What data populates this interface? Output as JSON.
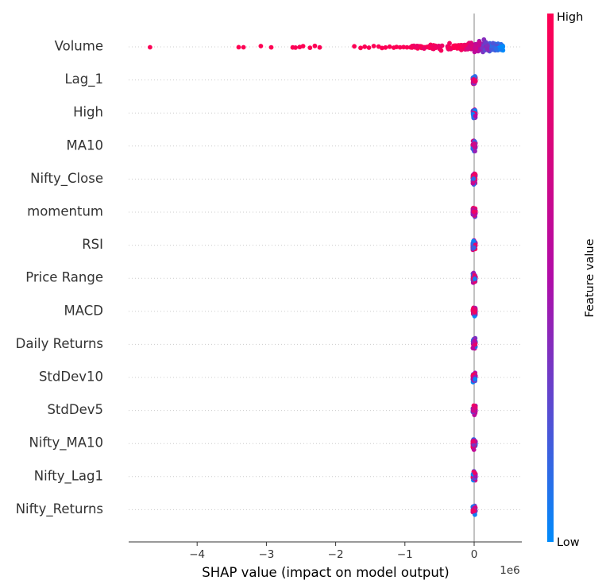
{
  "chart_data": {
    "type": "scatter",
    "subtype": "shap-beeswarm-summary",
    "features": [
      "Volume",
      "Lag_1",
      "High",
      "MA10",
      "Nifty_Close",
      "momentum",
      "RSI",
      "Price Range",
      "MACD",
      "Daily Returns",
      "StdDev10",
      "StdDev5",
      "Nifty_MA10",
      "Nifty_Lag1",
      "Nifty_Returns"
    ],
    "xlabel": "SHAP value (impact on model output)",
    "x_offset_label": "1e6",
    "x_scale": 1000000,
    "xlim": [
      -5.0,
      0.7
    ],
    "xticks": [
      -4,
      -3,
      -2,
      -1,
      0
    ],
    "xtick_labels": [
      "−4",
      "−3",
      "−2",
      "−1",
      "0"
    ],
    "colorbar": {
      "label": "Feature value",
      "high_label": "High",
      "low_label": "Low",
      "high_color": "#ff0052",
      "mid_color": "#b10ca8",
      "low_color": "#008bfb"
    },
    "volume_outliers_x": [
      -4.68,
      -3.4,
      -3.33,
      -3.08,
      -2.93,
      -2.62,
      -2.58,
      -2.52,
      -2.47,
      -2.37,
      -2.3,
      -2.23,
      -1.73,
      -1.64,
      -1.58,
      -1.52,
      -1.45,
      -1.38,
      -1.33,
      -1.28,
      -1.22,
      -1.16,
      -1.12,
      -1.07,
      -1.02,
      -0.97,
      -0.92
    ],
    "grid": false,
    "zero_line": true
  }
}
